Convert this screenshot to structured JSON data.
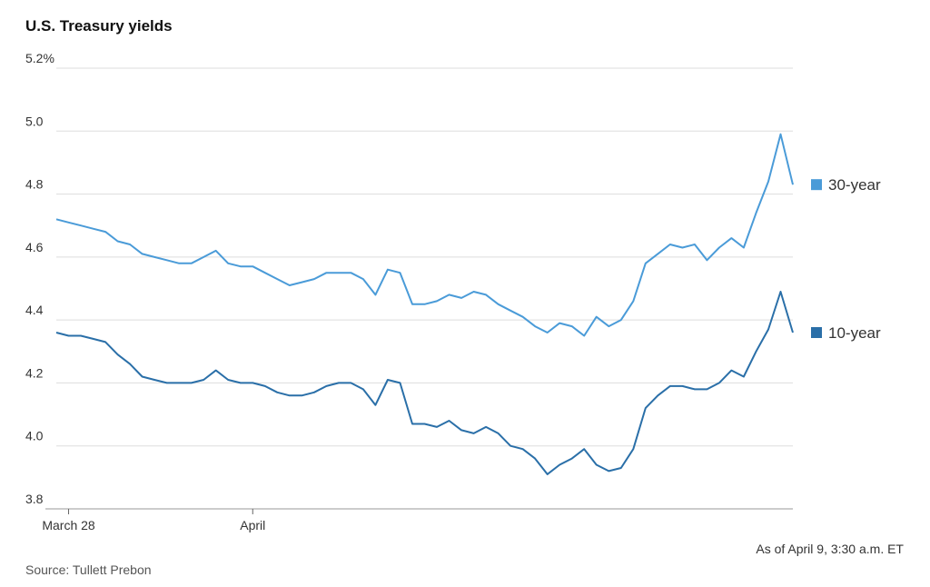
{
  "chart_data": {
    "type": "line",
    "title": "U.S. Treasury yields",
    "note": "As of April 9, 3:30 a.m. ET",
    "source": "Source: Tullett Prebon",
    "categories": [
      null,
      "March 28",
      null,
      null,
      null,
      null,
      null,
      null,
      null,
      null,
      null,
      null,
      null,
      null,
      null,
      null,
      "April",
      null,
      null,
      null,
      null,
      null,
      null,
      null,
      null,
      null,
      null,
      null,
      null,
      null,
      null,
      null,
      null,
      null,
      null,
      null,
      null,
      null,
      null,
      null,
      null,
      null,
      null,
      null,
      null,
      null,
      null,
      null,
      null,
      null,
      null,
      null,
      null,
      null,
      null,
      null,
      null,
      null,
      null,
      null,
      null
    ],
    "series": [
      {
        "name": "30-year",
        "color": "#4a9bd8",
        "values": [
          4.72,
          4.71,
          4.7,
          4.69,
          4.68,
          4.65,
          4.64,
          4.61,
          4.6,
          4.59,
          4.58,
          4.58,
          4.6,
          4.62,
          4.58,
          4.57,
          4.57,
          4.55,
          4.53,
          4.51,
          4.52,
          4.53,
          4.55,
          4.55,
          4.55,
          4.53,
          4.48,
          4.56,
          4.55,
          4.45,
          4.45,
          4.46,
          4.48,
          4.47,
          4.49,
          4.48,
          4.45,
          4.43,
          4.41,
          4.38,
          4.36,
          4.39,
          4.38,
          4.35,
          4.41,
          4.38,
          4.4,
          4.46,
          4.58,
          4.61,
          4.64,
          4.63,
          4.64,
          4.59,
          4.63,
          4.66,
          4.63,
          4.74,
          4.84,
          4.99,
          4.83
        ]
      },
      {
        "name": "10-year",
        "color": "#2a6fa8",
        "values": [
          4.36,
          4.35,
          4.35,
          4.34,
          4.33,
          4.29,
          4.26,
          4.22,
          4.21,
          4.2,
          4.2,
          4.2,
          4.21,
          4.24,
          4.21,
          4.2,
          4.2,
          4.19,
          4.17,
          4.16,
          4.16,
          4.17,
          4.19,
          4.2,
          4.2,
          4.18,
          4.13,
          4.21,
          4.2,
          4.07,
          4.07,
          4.06,
          4.08,
          4.05,
          4.04,
          4.06,
          4.04,
          4.0,
          3.99,
          3.96,
          3.91,
          3.94,
          3.96,
          3.99,
          3.94,
          3.92,
          3.93,
          3.99,
          4.12,
          4.16,
          4.19,
          4.19,
          4.18,
          4.18,
          4.2,
          4.24,
          4.22,
          4.3,
          4.37,
          4.49,
          4.36
        ]
      }
    ],
    "ylim": [
      3.8,
      5.2
    ],
    "yticks": [
      {
        "value": 5.2,
        "label": "5.2%"
      },
      {
        "value": 5.0,
        "label": "5.0"
      },
      4.8,
      4.6,
      4.4,
      4.2,
      {
        "value": 4.0,
        "label": "4.0"
      },
      3.8
    ],
    "grid": true
  }
}
